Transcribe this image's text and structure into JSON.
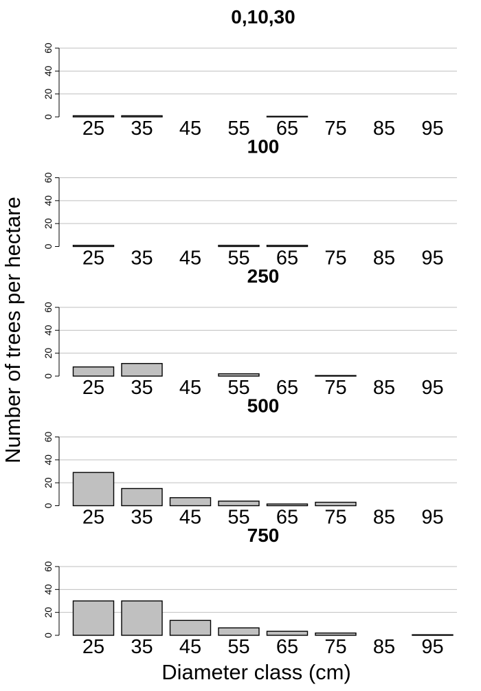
{
  "chart_data": {
    "type": "bar",
    "ylabel": "Number of trees per hectare",
    "xlabel": "Diameter class (cm)",
    "categories": [
      "25",
      "35",
      "45",
      "55",
      "65",
      "75",
      "85",
      "95"
    ],
    "ylim": [
      0,
      60
    ],
    "yticks": [
      "0",
      "20",
      "40",
      "60"
    ],
    "grid": true,
    "bar_color": "#c0c0c0",
    "grid_color": "#bfbfbf",
    "panels": [
      {
        "title": "0,10,30",
        "values": [
          1,
          1,
          0,
          0,
          0.5,
          0,
          0,
          0
        ]
      },
      {
        "title": "100",
        "values": [
          1,
          0,
          0,
          1,
          1,
          0,
          0,
          0
        ]
      },
      {
        "title": "250",
        "values": [
          8,
          11,
          0,
          2,
          0,
          0.5,
          0,
          0
        ]
      },
      {
        "title": "500",
        "values": [
          29,
          15,
          7,
          4,
          1.5,
          3,
          0,
          0
        ]
      },
      {
        "title": "750",
        "values": [
          30,
          30,
          13,
          6.5,
          3.5,
          2,
          0,
          0.5
        ]
      }
    ]
  }
}
